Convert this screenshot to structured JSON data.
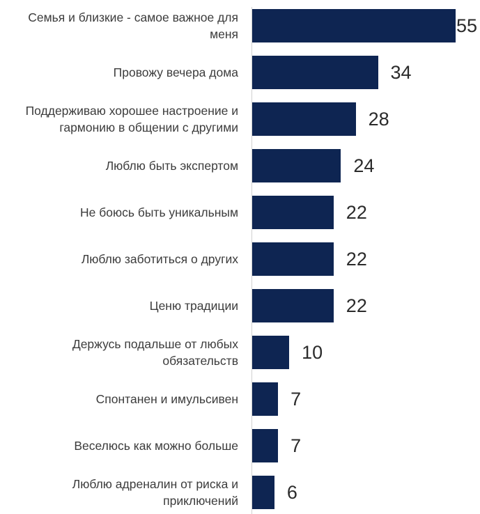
{
  "chart_data": {
    "type": "bar",
    "orientation": "horizontal",
    "categories": [
      "Семья и близкие - самое важное для меня",
      "Провожу вечера дома",
      "Поддерживаю хорошее настроение и гармонию в общении с другими",
      "Люблю быть экспертом",
      "Не боюсь быть уникальным",
      "Люблю заботиться о других",
      "Ценю традиции",
      "Держусь подальше от любых обязательств",
      "Спонтанен и имульсивен",
      "Веселюсь как можно больше",
      "Люблю адреналин от риска и приключений"
    ],
    "values": [
      55,
      34,
      28,
      24,
      22,
      22,
      22,
      10,
      7,
      7,
      6
    ],
    "value_labels": [
      "55",
      "34",
      "28",
      "24",
      "22",
      "22",
      "22",
      "10",
      "7",
      "7",
      "6"
    ],
    "xlim": [
      0,
      55
    ],
    "grid": false,
    "legend": "none",
    "bar_color": "#0e2552"
  }
}
